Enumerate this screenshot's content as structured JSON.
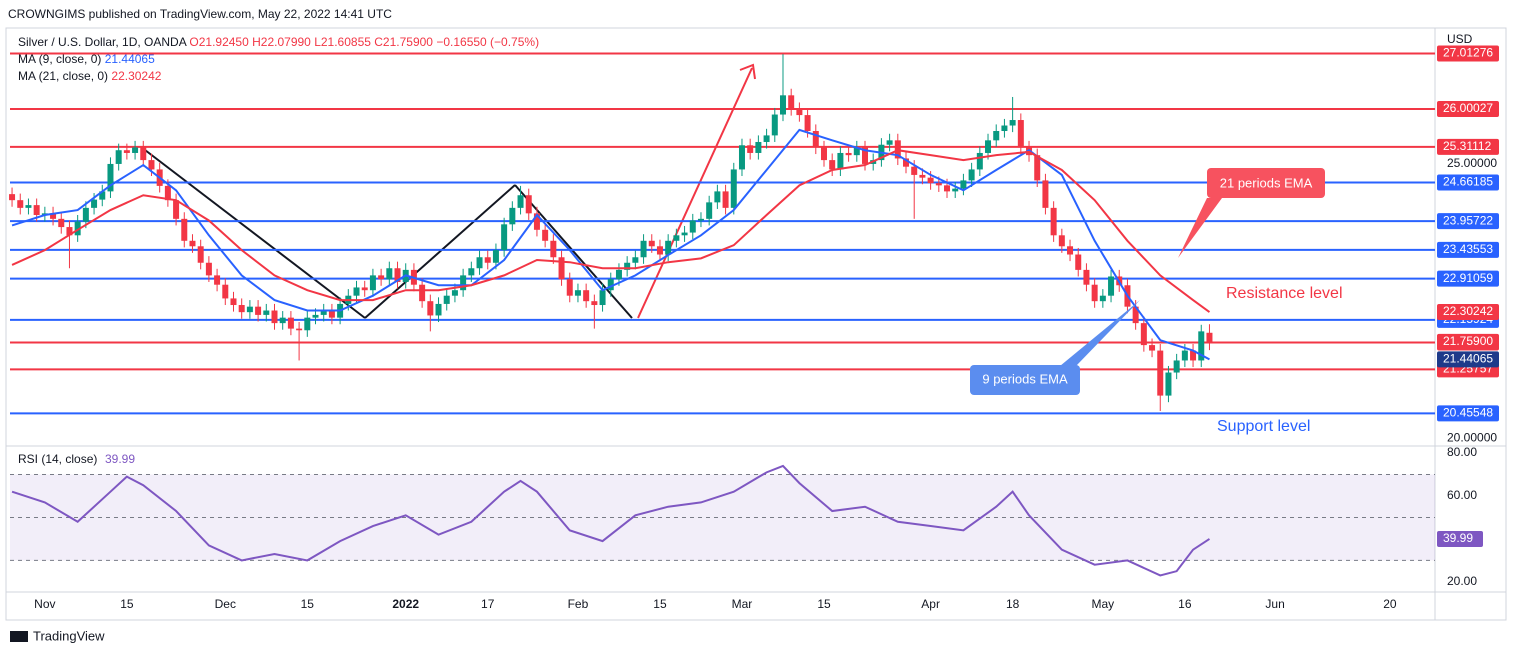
{
  "header": {
    "publisher": "CROWNGIMS published on TradingView.com, May 22, 2022 14:41 UTC",
    "footer": "TradingView"
  },
  "chart_data": [
    {
      "type": "candlestick",
      "title": "Silver / U.S. Dollar, 1D, OANDA",
      "currency": "USD",
      "ohlc_legend": [
        "O21.92450",
        "H22.07990",
        "L21.60855",
        "C21.75900",
        "−0.16550 (−0.75%)"
      ],
      "price_label": "21.75900",
      "up_color": "#089981",
      "down_color": "#f23645",
      "xlim": [
        -0.25,
        173.5
      ],
      "ylim": [
        19.88,
        27.44
      ],
      "grid": false,
      "yticks": [
        {
          "value": 25,
          "label": "25.00000"
        },
        {
          "value": 20,
          "label": "20.00000"
        }
      ],
      "xticks": [
        {
          "value": 4,
          "label": "Nov"
        },
        {
          "value": 14,
          "label": "15"
        },
        {
          "value": 26,
          "label": "Dec"
        },
        {
          "value": 36,
          "label": "15"
        },
        {
          "value": 48,
          "label": "2022"
        },
        {
          "value": 58,
          "label": "17"
        },
        {
          "value": 69,
          "label": "Feb"
        },
        {
          "value": 79,
          "label": "15"
        },
        {
          "value": 89,
          "label": "Mar"
        },
        {
          "value": 99,
          "label": "15"
        },
        {
          "value": 112,
          "label": "Apr"
        },
        {
          "value": 122,
          "label": "18"
        },
        {
          "value": 133,
          "label": "May"
        },
        {
          "value": 143,
          "label": "16"
        },
        {
          "value": 154,
          "label": "Jun"
        },
        {
          "value": 168,
          "label": "20"
        }
      ],
      "x": [
        0,
        1,
        2,
        3,
        4,
        5,
        6,
        7,
        8,
        9,
        10,
        11,
        12,
        13,
        14,
        15,
        16,
        17,
        18,
        19,
        20,
        21,
        22,
        23,
        24,
        25,
        26,
        27,
        28,
        29,
        30,
        31,
        32,
        33,
        34,
        35,
        36,
        37,
        38,
        39,
        40,
        41,
        42,
        43,
        44,
        45,
        46,
        47,
        48,
        49,
        50,
        51,
        52,
        53,
        54,
        55,
        56,
        57,
        58,
        59,
        60,
        61,
        62,
        63,
        64,
        65,
        66,
        67,
        68,
        69,
        70,
        71,
        72,
        73,
        74,
        75,
        76,
        77,
        78,
        79,
        80,
        81,
        82,
        83,
        84,
        85,
        86,
        87,
        88,
        89,
        90,
        91,
        92,
        93,
        94,
        95,
        96,
        97,
        98,
        99,
        100,
        101,
        102,
        103,
        104,
        105,
        106,
        107,
        108,
        109,
        110,
        111,
        112,
        113,
        114,
        115,
        116,
        117,
        118,
        119,
        120,
        121,
        122,
        123,
        124,
        125,
        126,
        127,
        128,
        129,
        130,
        131,
        132,
        133,
        134,
        135,
        136,
        137,
        138,
        139,
        140,
        141,
        142,
        143,
        144,
        145,
        146
      ],
      "open": [
        24.45,
        24.34,
        24.2,
        24.25,
        24.07,
        24.1,
        24.0,
        23.85,
        23.7,
        23.95,
        24.2,
        24.35,
        24.5,
        25.0,
        25.25,
        25.2,
        25.3,
        25.07,
        24.9,
        24.6,
        24.34,
        24.0,
        23.6,
        23.5,
        23.2,
        22.97,
        22.8,
        22.55,
        22.43,
        22.3,
        22.4,
        22.25,
        22.33,
        22.1,
        22.2,
        22.0,
        21.97,
        22.2,
        22.25,
        22.33,
        22.2,
        22.45,
        22.6,
        22.75,
        22.7,
        22.97,
        22.9,
        23.1,
        22.85,
        23.07,
        22.8,
        22.5,
        22.24,
        22.45,
        22.6,
        22.7,
        22.97,
        23.1,
        23.3,
        23.2,
        23.43,
        23.9,
        24.2,
        24.43,
        24.1,
        23.8,
        23.6,
        23.3,
        22.9,
        22.6,
        22.7,
        22.5,
        22.43,
        22.7,
        22.9,
        23.07,
        23.2,
        23.3,
        23.6,
        23.5,
        23.35,
        23.6,
        23.7,
        23.75,
        23.97,
        24.0,
        24.3,
        24.5,
        24.2,
        24.9,
        25.34,
        25.2,
        25.4,
        25.52,
        25.9,
        26.25,
        26.0,
        25.89,
        25.6,
        25.3,
        25.07,
        24.9,
        25.2,
        25.16,
        25.3,
        25.0,
        25.07,
        25.35,
        25.43,
        25.1,
        24.95,
        24.8,
        24.75,
        24.65,
        24.61,
        24.5,
        24.55,
        24.7,
        24.9,
        25.2,
        25.43,
        25.6,
        25.7,
        25.8,
        25.3,
        25.16,
        24.7,
        24.2,
        23.7,
        23.5,
        23.35,
        23.07,
        22.8,
        22.5,
        22.6,
        22.95,
        22.79,
        22.4,
        22.1,
        21.7,
        21.6,
        20.78,
        21.2,
        21.42,
        21.6,
        21.42,
        21.9245
      ],
      "high": [
        24.57,
        24.46,
        24.37,
        24.37,
        24.22,
        24.22,
        24.12,
        23.97,
        24.07,
        24.32,
        24.47,
        24.62,
        25.12,
        25.37,
        25.37,
        25.42,
        25.42,
        25.19,
        25.02,
        24.72,
        24.46,
        24.12,
        23.72,
        23.62,
        23.32,
        23.09,
        22.92,
        22.67,
        22.55,
        22.52,
        22.52,
        22.45,
        22.45,
        22.32,
        22.32,
        22.12,
        22.32,
        22.37,
        22.45,
        22.45,
        22.57,
        22.72,
        22.87,
        22.87,
        23.09,
        23.09,
        23.22,
        23.22,
        23.19,
        23.19,
        22.92,
        22.62,
        22.57,
        22.72,
        22.82,
        23.09,
        23.22,
        23.42,
        23.42,
        23.55,
        24.02,
        24.32,
        24.6,
        24.55,
        24.22,
        23.92,
        23.72,
        23.42,
        23.02,
        22.82,
        22.82,
        22.62,
        22.82,
        23.02,
        23.19,
        23.32,
        23.42,
        23.72,
        23.72,
        23.62,
        23.72,
        23.82,
        23.87,
        24.09,
        24.12,
        24.42,
        24.62,
        24.62,
        25.02,
        25.46,
        25.46,
        25.52,
        25.64,
        26.02,
        27.0,
        26.37,
        26.12,
        26.01,
        25.72,
        25.42,
        25.19,
        25.32,
        25.32,
        25.42,
        25.42,
        25.19,
        25.47,
        25.55,
        25.55,
        25.22,
        25.07,
        24.92,
        24.87,
        24.77,
        24.73,
        24.67,
        24.82,
        25.02,
        25.32,
        25.55,
        25.72,
        25.82,
        26.22,
        25.92,
        25.42,
        25.28,
        24.82,
        24.32,
        23.82,
        23.62,
        23.47,
        23.19,
        22.92,
        22.72,
        23.07,
        23.07,
        22.91,
        22.52,
        22.22,
        21.82,
        21.72,
        21.32,
        21.54,
        21.72,
        21.72,
        22.07,
        22.0799
      ],
      "low": [
        24.22,
        24.08,
        24.08,
        23.95,
        23.95,
        23.88,
        23.73,
        23.1,
        23.58,
        23.83,
        24.08,
        24.23,
        24.38,
        24.88,
        25.08,
        25.08,
        24.95,
        24.78,
        24.48,
        24.22,
        23.88,
        23.48,
        23.38,
        23.08,
        22.85,
        22.68,
        22.43,
        22.31,
        22.18,
        22.18,
        22.13,
        22.13,
        21.98,
        21.98,
        21.88,
        21.42,
        21.85,
        22.08,
        22.13,
        22.08,
        22.08,
        22.33,
        22.48,
        22.58,
        22.58,
        22.78,
        22.78,
        22.73,
        22.73,
        22.68,
        22.38,
        21.95,
        22.12,
        22.33,
        22.48,
        22.58,
        22.85,
        22.98,
        23.08,
        23.08,
        23.31,
        23.78,
        24.08,
        23.98,
        23.68,
        23.48,
        23.18,
        22.78,
        22.48,
        22.48,
        22.38,
        22.0,
        22.31,
        22.58,
        22.78,
        22.95,
        23.08,
        23.18,
        23.38,
        23.23,
        23.23,
        23.48,
        23.58,
        23.63,
        23.85,
        23.88,
        24.18,
        24.08,
        24.08,
        24.78,
        25.08,
        25.08,
        25.28,
        25.4,
        25.78,
        25.88,
        25.77,
        25.48,
        25.18,
        24.95,
        24.78,
        24.78,
        25.04,
        25.04,
        24.88,
        24.88,
        24.95,
        25.23,
        24.98,
        24.83,
        24.0,
        24.63,
        24.53,
        24.49,
        24.38,
        24.38,
        24.43,
        24.58,
        24.78,
        25.08,
        25.31,
        25.48,
        25.58,
        25.18,
        25.04,
        24.58,
        24.08,
        23.58,
        23.38,
        23.23,
        22.95,
        22.68,
        22.38,
        22.38,
        22.48,
        22.67,
        22.28,
        21.98,
        21.58,
        21.48,
        20.5,
        20.66,
        21.08,
        21.3,
        21.3,
        21.3,
        21.60855
      ],
      "close": [
        24.34,
        24.2,
        24.25,
        24.07,
        24.1,
        24.0,
        23.85,
        23.7,
        23.95,
        24.2,
        24.35,
        24.5,
        25.0,
        25.25,
        25.2,
        25.3,
        25.07,
        24.9,
        24.6,
        24.34,
        24.0,
        23.6,
        23.5,
        23.2,
        22.97,
        22.8,
        22.55,
        22.43,
        22.3,
        22.4,
        22.25,
        22.33,
        22.1,
        22.2,
        22.0,
        21.97,
        22.2,
        22.25,
        22.33,
        22.2,
        22.45,
        22.6,
        22.75,
        22.7,
        22.97,
        22.9,
        23.1,
        22.85,
        23.07,
        22.8,
        22.5,
        22.24,
        22.45,
        22.6,
        22.7,
        22.97,
        23.1,
        23.3,
        23.2,
        23.43,
        23.9,
        24.2,
        24.43,
        24.1,
        23.8,
        23.6,
        23.3,
        22.9,
        22.6,
        22.7,
        22.5,
        22.43,
        22.7,
        22.9,
        23.07,
        23.2,
        23.3,
        23.6,
        23.5,
        23.35,
        23.6,
        23.7,
        23.75,
        23.97,
        24.0,
        24.3,
        24.5,
        24.2,
        24.9,
        25.34,
        25.2,
        25.4,
        25.52,
        25.9,
        26.25,
        26.0,
        25.89,
        25.6,
        25.3,
        25.07,
        24.9,
        25.2,
        25.16,
        25.3,
        25.0,
        25.07,
        25.35,
        25.43,
        25.1,
        24.95,
        24.8,
        24.75,
        24.65,
        24.61,
        24.5,
        24.55,
        24.7,
        24.9,
        25.2,
        25.43,
        25.6,
        25.7,
        25.8,
        25.3,
        25.16,
        24.7,
        24.2,
        23.7,
        23.5,
        23.35,
        23.07,
        22.8,
        22.5,
        22.6,
        22.95,
        22.79,
        22.4,
        22.1,
        21.7,
        21.6,
        20.78,
        21.2,
        21.42,
        21.6,
        21.42,
        21.95,
        21.759
      ],
      "series": [
        {
          "name": "MA (9, close, 0)",
          "color": "#2962ff",
          "marker_color": "#1e3a8a",
          "x": [
            0,
            4,
            8,
            12,
            16,
            20,
            24,
            28,
            32,
            36,
            40,
            44,
            48,
            52,
            56,
            60,
            64,
            68,
            72,
            76,
            80,
            84,
            88,
            92,
            96,
            100,
            104,
            108,
            112,
            116,
            120,
            124,
            128,
            132,
            136,
            140,
            144,
            146
          ],
          "values": [
            23.88,
            24.07,
            24.16,
            24.61,
            24.98,
            24.52,
            23.7,
            22.97,
            22.52,
            22.33,
            22.33,
            22.6,
            22.97,
            22.79,
            22.79,
            23.25,
            24.07,
            23.43,
            22.7,
            22.97,
            23.34,
            23.7,
            24.16,
            24.89,
            25.62,
            25.43,
            25.25,
            25.16,
            24.8,
            24.52,
            24.89,
            25.25,
            24.8,
            23.6,
            22.6,
            21.79,
            21.6,
            21.44065
          ]
        },
        {
          "name": "MA (21, close, 0)",
          "color": "#f23645",
          "marker_color": "#f23645",
          "x": [
            0,
            4,
            8,
            12,
            16,
            20,
            24,
            28,
            32,
            36,
            40,
            44,
            48,
            52,
            56,
            60,
            64,
            68,
            72,
            76,
            80,
            84,
            88,
            92,
            96,
            100,
            104,
            108,
            112,
            116,
            120,
            124,
            128,
            132,
            136,
            140,
            144,
            146
          ],
          "values": [
            23.16,
            23.43,
            23.8,
            24.16,
            24.43,
            24.34,
            23.97,
            23.43,
            22.97,
            22.7,
            22.52,
            22.52,
            22.7,
            22.7,
            22.79,
            22.97,
            23.25,
            23.21,
            23.1,
            23.1,
            23.21,
            23.28,
            23.52,
            24.07,
            24.61,
            24.89,
            24.98,
            25.25,
            25.16,
            25.07,
            25.16,
            25.22,
            24.89,
            24.34,
            23.6,
            22.97,
            22.52,
            22.30242
          ]
        }
      ],
      "levels": [
        {
          "value": 27.01276,
          "color": "#f23645"
        },
        {
          "value": 26.00027,
          "color": "#f23645"
        },
        {
          "value": 25.31112,
          "color": "#f23645"
        },
        {
          "value": 24.66185,
          "color": "#2962ff"
        },
        {
          "value": 23.95722,
          "color": "#2962ff"
        },
        {
          "value": 23.43553,
          "color": "#2962ff"
        },
        {
          "value": 22.91059,
          "color": "#2962ff"
        },
        {
          "value": 22.15924,
          "color": "#2962ff"
        },
        {
          "value": 21.74722,
          "color": "#f23645"
        },
        {
          "value": 21.25757,
          "color": "#f23645"
        },
        {
          "value": 20.45548,
          "color": "#2962ff"
        }
      ],
      "annotations": [
        "21 periods EMA",
        "9 periods EMA",
        "Resistance level",
        "Support level"
      ]
    },
    {
      "type": "line",
      "title": "RSI (14, close)",
      "color": "#7e57c2",
      "ylim": [
        15.3,
        82.8
      ],
      "yticks": [
        {
          "value": 80,
          "label": "80.00"
        },
        {
          "value": 60,
          "label": "60.00"
        },
        {
          "value": 20,
          "label": "20.00"
        }
      ],
      "band": [
        30,
        70
      ],
      "midline": 50,
      "x": [
        0,
        4,
        8,
        12,
        14,
        16,
        20,
        24,
        28,
        32,
        36,
        40,
        44,
        48,
        52,
        56,
        60,
        62,
        64,
        68,
        72,
        76,
        80,
        84,
        88,
        92,
        94,
        96,
        100,
        104,
        108,
        112,
        116,
        120,
        122,
        124,
        128,
        132,
        136,
        140,
        142,
        144,
        146
      ],
      "values": [
        62,
        57,
        48,
        62,
        69,
        65,
        53,
        37,
        30,
        33,
        30,
        39,
        46,
        51,
        42,
        48,
        62,
        67,
        62,
        44,
        39,
        51,
        55,
        57,
        62,
        71,
        74,
        66,
        53,
        55,
        48,
        46,
        44,
        55,
        62,
        51,
        35,
        28,
        30,
        23,
        25,
        35,
        39.99
      ]
    }
  ]
}
